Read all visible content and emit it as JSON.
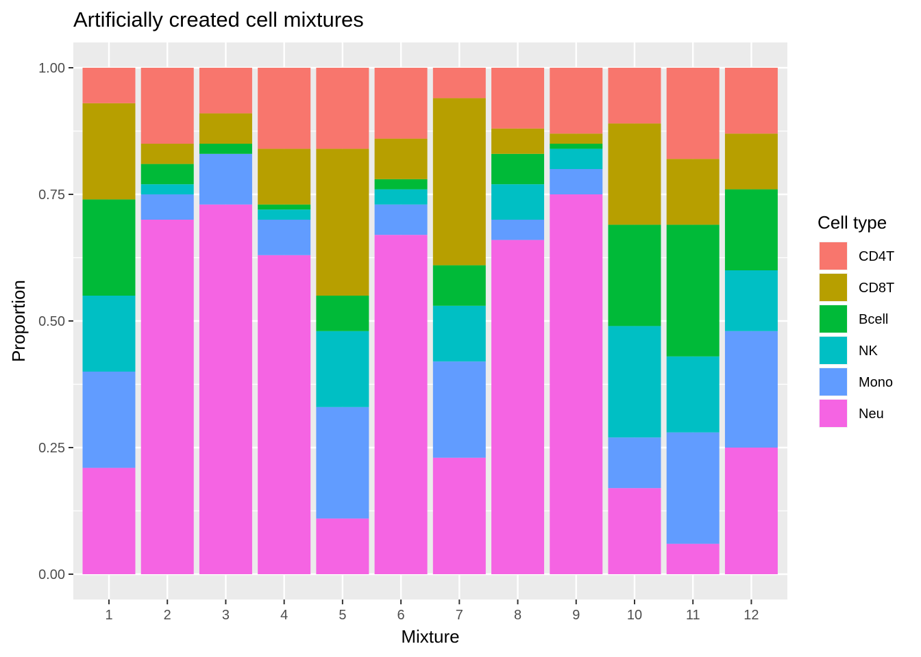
{
  "chart_data": {
    "type": "bar",
    "stacked": true,
    "title": "Artificially created cell mixtures",
    "xlabel": "Mixture",
    "ylabel": "Proportion",
    "ylim": [
      0,
      1
    ],
    "yticks": [
      "0.00",
      "0.25",
      "0.50",
      "0.75",
      "1.00"
    ],
    "grid": true,
    "legend_position": "right",
    "legend_title": "Cell type",
    "categories": [
      "1",
      "2",
      "3",
      "4",
      "5",
      "6",
      "7",
      "8",
      "9",
      "10",
      "11",
      "12"
    ],
    "series": [
      {
        "name": "CD4T",
        "color": "#F8766D",
        "values": [
          0.07,
          0.15,
          0.09,
          0.16,
          0.16,
          0.14,
          0.06,
          0.12,
          0.13,
          0.11,
          0.18,
          0.13
        ]
      },
      {
        "name": "CD8T",
        "color": "#B79F00",
        "values": [
          0.19,
          0.04,
          0.06,
          0.11,
          0.29,
          0.08,
          0.33,
          0.05,
          0.02,
          0.2,
          0.13,
          0.11
        ]
      },
      {
        "name": "Bcell",
        "color": "#00BA38",
        "values": [
          0.19,
          0.04,
          0.02,
          0.01,
          0.07,
          0.02,
          0.08,
          0.06,
          0.01,
          0.2,
          0.26,
          0.16
        ]
      },
      {
        "name": "NK",
        "color": "#00BFC4",
        "values": [
          0.15,
          0.02,
          0.0,
          0.02,
          0.15,
          0.03,
          0.11,
          0.07,
          0.04,
          0.22,
          0.15,
          0.12
        ]
      },
      {
        "name": "Mono",
        "color": "#619CFF",
        "values": [
          0.19,
          0.05,
          0.1,
          0.07,
          0.22,
          0.06,
          0.19,
          0.04,
          0.05,
          0.1,
          0.22,
          0.23
        ]
      },
      {
        "name": "Neu",
        "color": "#F564E3",
        "values": [
          0.21,
          0.7,
          0.73,
          0.63,
          0.11,
          0.67,
          0.23,
          0.66,
          0.75,
          0.17,
          0.06,
          0.25
        ]
      }
    ]
  }
}
